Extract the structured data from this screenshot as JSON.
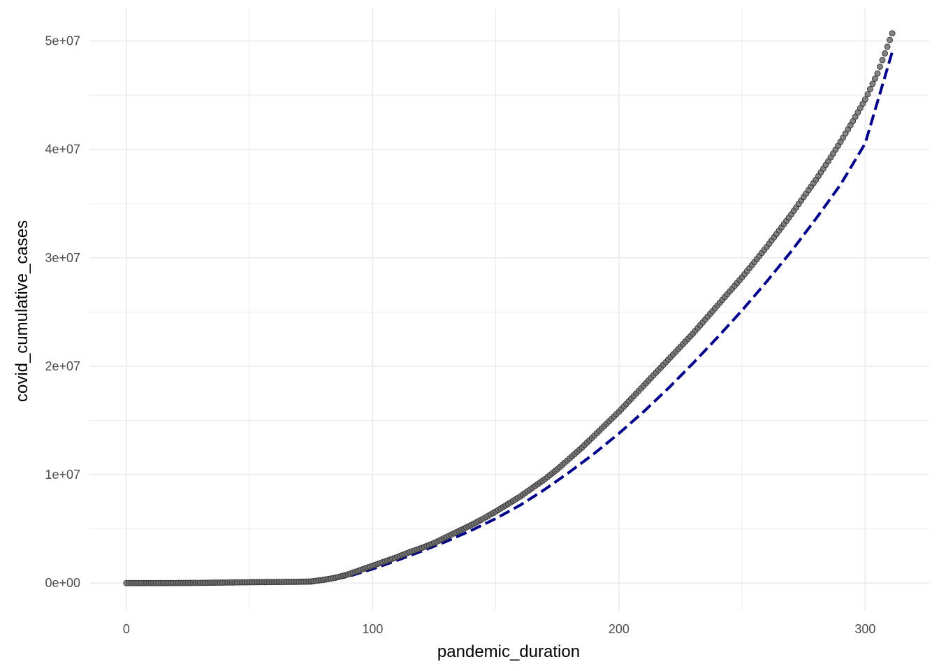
{
  "chart_data": {
    "type": "scatter",
    "title": "",
    "xlabel": "pandemic_duration",
    "ylabel": "covid_cumulative_cases",
    "xlim": [
      -15,
      326
    ],
    "ylim": [
      -2500000,
      53000000
    ],
    "x_ticks": [
      0,
      100,
      200,
      300
    ],
    "x_tick_labels": [
      "0",
      "100",
      "200",
      "300"
    ],
    "y_ticks": [
      0,
      10000000,
      20000000,
      30000000,
      40000000,
      50000000
    ],
    "y_tick_labels": [
      "0e+00",
      "1e+07",
      "2e+07",
      "3e+07",
      "4e+07",
      "5e+07"
    ],
    "grid": true,
    "theme": "minimal",
    "colors": {
      "points_fill": "#6e6e6e",
      "points_stroke": "#333333",
      "fit_line": "#00008b",
      "grid": "#ebebeb"
    },
    "series": [
      {
        "kind": "points",
        "x": [
          0,
          10,
          20,
          30,
          40,
          50,
          60,
          70,
          75,
          80,
          85,
          90,
          95,
          100,
          105,
          110,
          115,
          120,
          125,
          130,
          135,
          140,
          145,
          150,
          155,
          160,
          165,
          170,
          175,
          180,
          185,
          190,
          195,
          200,
          205,
          210,
          215,
          220,
          225,
          230,
          235,
          240,
          245,
          250,
          255,
          260,
          265,
          270,
          275,
          280,
          285,
          290,
          295,
          300,
          305,
          311
        ],
        "y": [
          0,
          1000,
          5000,
          20000,
          50000,
          80000,
          100000,
          120000,
          150000,
          300000,
          500000,
          800000,
          1200000,
          1600000,
          2000000,
          2400000,
          2850000,
          3250000,
          3700000,
          4250000,
          4800000,
          5350000,
          5950000,
          6600000,
          7300000,
          8000000,
          8800000,
          9600000,
          10500000,
          11500000,
          12500000,
          13600000,
          14700000,
          15800000,
          17000000,
          18200000,
          19400000,
          20600000,
          21800000,
          23000000,
          24300000,
          25600000,
          26900000,
          28200000,
          29600000,
          31000000,
          32500000,
          34000000,
          35600000,
          37200000,
          38900000,
          40700000,
          42600000,
          44600000,
          47000000,
          50700000
        ]
      },
      {
        "kind": "dashed-line",
        "x": [
          0,
          75,
          80,
          90,
          100,
          110,
          120,
          130,
          140,
          150,
          160,
          170,
          180,
          190,
          200,
          210,
          220,
          230,
          240,
          250,
          260,
          270,
          280,
          290,
          300,
          311
        ],
        "y": [
          0,
          0,
          200000,
          600000,
          1300000,
          2100000,
          2950000,
          3850000,
          4850000,
          5950000,
          7200000,
          8650000,
          10250000,
          11950000,
          13800000,
          15800000,
          17950000,
          20250000,
          22650000,
          25150000,
          27800000,
          30600000,
          33600000,
          36750000,
          40550000,
          49000000
        ]
      }
    ]
  }
}
